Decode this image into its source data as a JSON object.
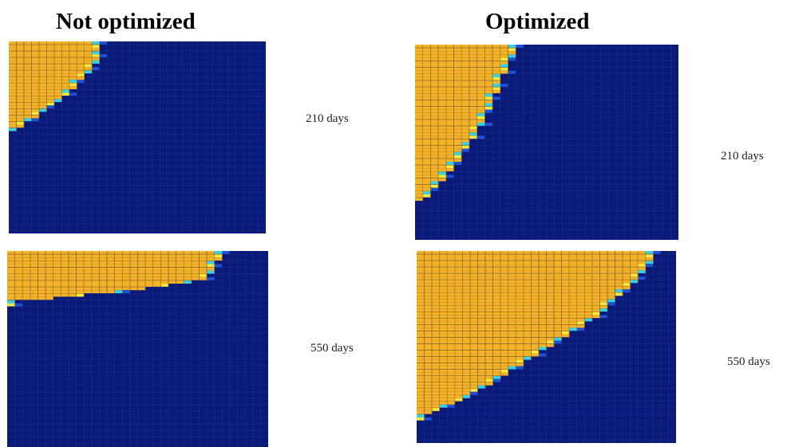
{
  "columns": [
    {
      "title": "Not optimized"
    },
    {
      "title": "Optimized"
    }
  ],
  "panels": [
    {
      "id": "no-210",
      "time_label": "210 days"
    },
    {
      "id": "no-550",
      "time_label": "550 days"
    },
    {
      "id": "opt-210",
      "time_label": "210 days"
    },
    {
      "id": "opt-550",
      "time_label": "550 days"
    }
  ],
  "colors": {
    "reservoir": "#0a1a78",
    "grid_line": "#1e2e8c",
    "front_fill": "#f4b326",
    "front_grid": "#b87c10",
    "transition_cyan": "#34d4e8",
    "transition_blue": "#1c52d6",
    "transition_yellow": "#f6ea3a"
  }
}
